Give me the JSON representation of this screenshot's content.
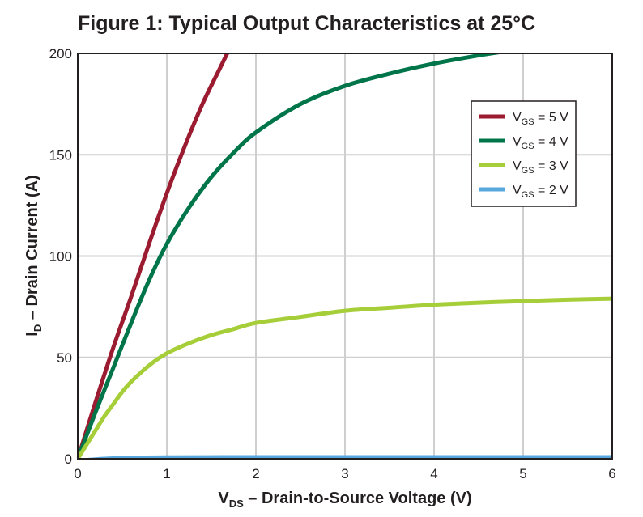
{
  "chart_data": {
    "type": "line",
    "title": "Figure 1: Typical Output Characteristics at 25°C",
    "xlabel": {
      "main": "V",
      "sub": "DS",
      "rest": " – Drain-to-Source Voltage (V)"
    },
    "ylabel": {
      "main": "I",
      "sub": "D",
      "rest": " – Drain Current (A)"
    },
    "xlim": [
      0,
      6
    ],
    "ylim": [
      0,
      200
    ],
    "xticks": [
      "0",
      "1",
      "2",
      "3",
      "4",
      "5",
      "6"
    ],
    "yticks": [
      "0",
      "50",
      "100",
      "150",
      "200"
    ],
    "grid": true,
    "legend_position": "top-right",
    "series": [
      {
        "name": {
          "main": "V",
          "sub": "GS",
          "rest": " = 5 V"
        },
        "color": "#9b1b30",
        "x": [
          0,
          0.2,
          0.4,
          0.6,
          0.8,
          1.0,
          1.2,
          1.4,
          1.6,
          1.7
        ],
        "y": [
          0,
          28,
          55,
          80,
          106,
          131,
          154,
          175,
          193,
          202
        ]
      },
      {
        "name": {
          "main": "V",
          "sub": "GS",
          "rest": " = 4 V"
        },
        "color": "#00754a",
        "x": [
          0,
          0.2,
          0.4,
          0.6,
          0.8,
          1.0,
          1.25,
          1.5,
          1.75,
          2.0,
          2.5,
          3.0,
          3.5,
          4.0,
          4.5,
          4.8
        ],
        "y": [
          0,
          23,
          45,
          67,
          88,
          106,
          124,
          139,
          151,
          161,
          175,
          184,
          190,
          195,
          199,
          201
        ]
      },
      {
        "name": {
          "main": "V",
          "sub": "GS",
          "rest": " = 3 V"
        },
        "color": "#a6ce39",
        "x": [
          0,
          0.1,
          0.2,
          0.3,
          0.4,
          0.5,
          0.6,
          0.8,
          1.0,
          1.25,
          1.5,
          1.75,
          2.0,
          2.5,
          3.0,
          3.5,
          4.0,
          4.5,
          5.0,
          5.5,
          6.0
        ],
        "y": [
          0,
          7,
          14,
          21,
          27,
          33,
          38,
          46,
          52,
          57,
          61,
          64,
          67,
          70,
          73,
          74.5,
          76,
          77,
          77.8,
          78.5,
          79
        ]
      },
      {
        "name": {
          "main": "V",
          "sub": "GS",
          "rest": " = 2 V"
        },
        "color": "#59a8dd",
        "x": [
          0,
          0.3,
          0.6,
          1.0,
          2.0,
          3.0,
          4.0,
          5.0,
          6.0
        ],
        "y": [
          -1,
          0,
          0.5,
          0.7,
          0.8,
          0.8,
          0.8,
          0.8,
          0.8
        ]
      }
    ]
  }
}
